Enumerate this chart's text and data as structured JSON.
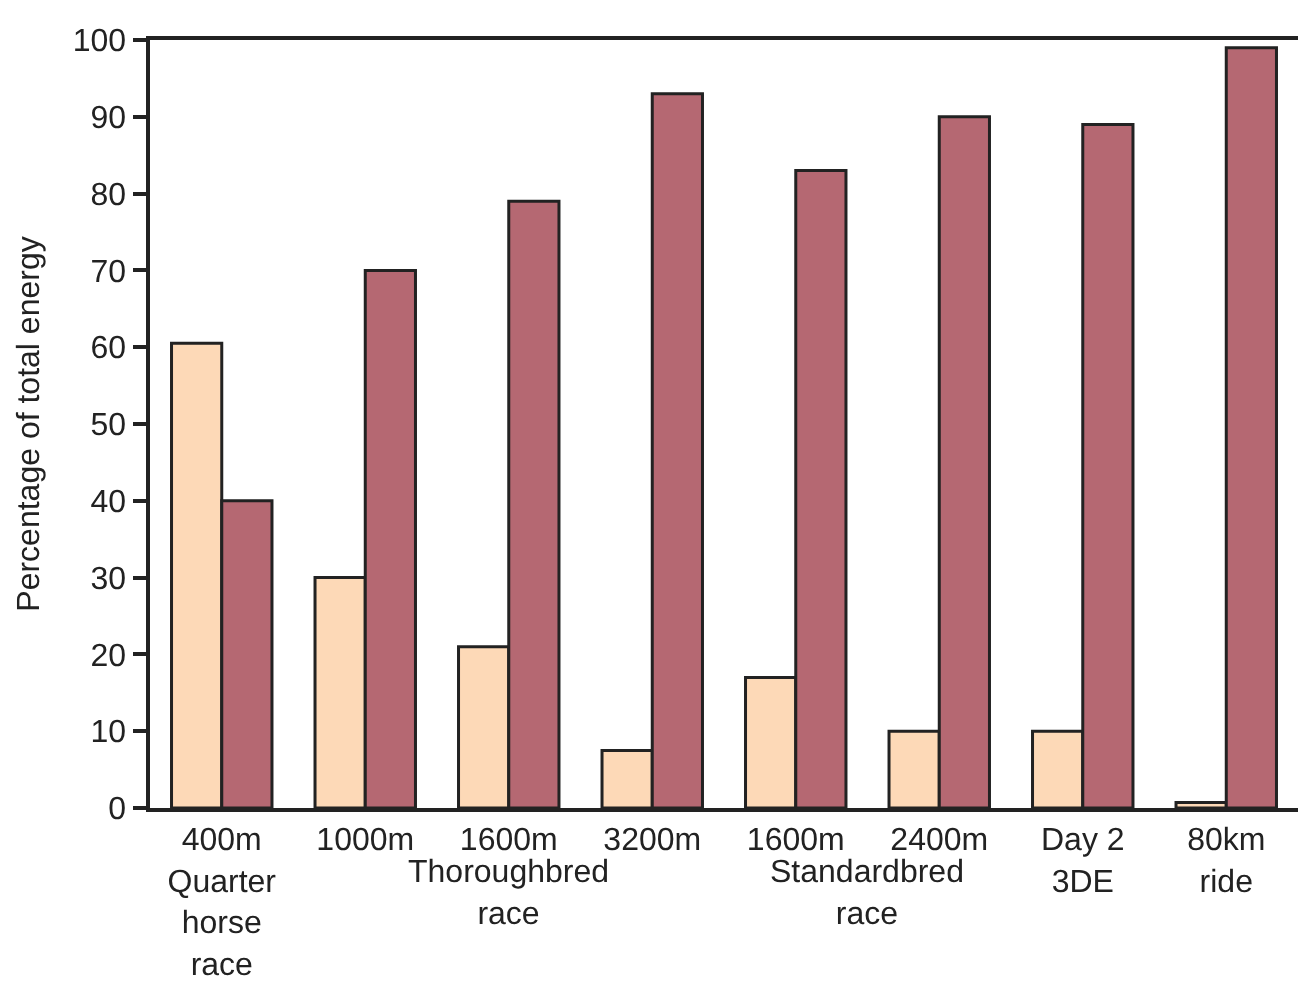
{
  "chart_data": {
    "type": "bar",
    "ylabel": "Percentage of total energy",
    "categories": [
      "400m\nQuarter\nhorse\nrace",
      "1000m",
      "1600m",
      "3200m",
      "1600m",
      "2400m",
      "Day 2\n3DE",
      "80km\nride"
    ],
    "series": [
      {
        "color": "#fdd9b7",
        "values": [
          60.5,
          30,
          21,
          7.5,
          17,
          10,
          10,
          0.7
        ]
      },
      {
        "color": "#b56872",
        "values": [
          40,
          70,
          79,
          93,
          83,
          90,
          89,
          99
        ]
      }
    ],
    "annotations": [
      "Thoroughbred\nrace",
      "Standardbred\nrace"
    ],
    "ylim": [
      0,
      100
    ],
    "yticks": [
      0,
      10,
      20,
      30,
      40,
      50,
      60,
      70,
      80,
      90,
      100
    ]
  }
}
